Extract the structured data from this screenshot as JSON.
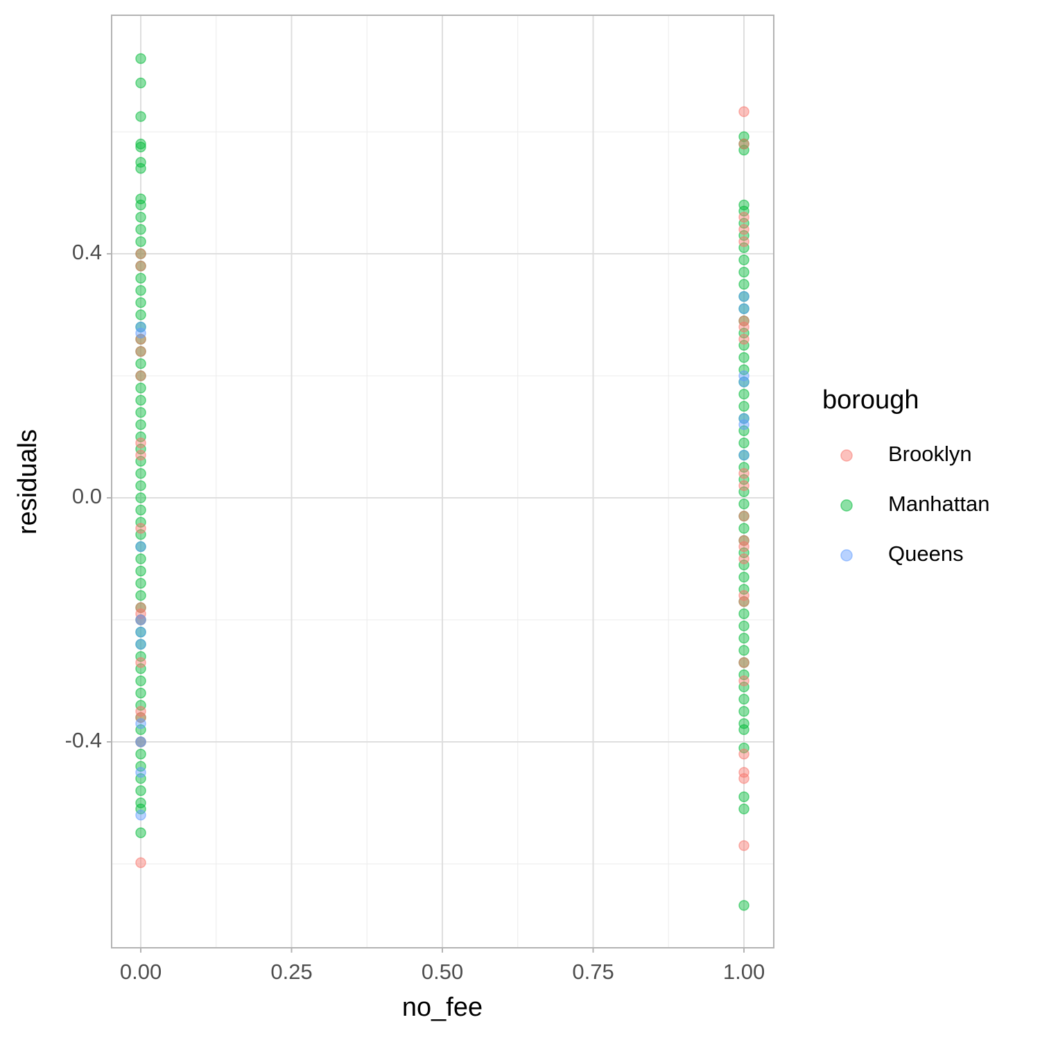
{
  "chart_data": {
    "type": "scatter",
    "xlabel": "no_fee",
    "ylabel": "residuals",
    "legend_title": "borough",
    "legend": "right",
    "grid": true,
    "xlim": [
      -0.0483,
      1.0494
    ],
    "ylim": [
      -0.7375,
      0.791
    ],
    "xticks": [
      {
        "value": 0,
        "label": "0.00"
      },
      {
        "value": 0.25,
        "label": "0.25"
      },
      {
        "value": 0.5,
        "label": "0.50"
      },
      {
        "value": 0.75,
        "label": "0.75"
      },
      {
        "value": 1,
        "label": "1.00"
      }
    ],
    "yticks": [
      -0.4,
      {
        "value": 0,
        "label": "0.0"
      },
      0.4
    ],
    "x_minor_grid": [
      0.125,
      0.375,
      0.625,
      0.875
    ],
    "y_minor_grid": [
      -0.6,
      -0.2,
      0.2,
      0.6
    ],
    "series": [
      {
        "name": "Manhattan",
        "color": "#00BA38",
        "x": [
          0,
          0,
          0,
          0,
          0,
          0,
          0,
          0,
          0,
          0,
          0,
          0,
          0,
          0,
          0,
          0,
          0,
          0,
          0,
          0,
          0,
          0,
          0,
          0,
          0,
          0,
          0,
          0,
          0,
          0,
          0,
          0,
          0,
          0,
          0,
          0,
          0,
          0,
          0,
          0,
          0,
          0,
          0,
          0,
          0,
          0,
          0,
          0,
          0,
          0,
          0,
          0,
          0,
          0,
          0,
          0,
          0,
          0,
          0,
          0,
          1,
          1,
          1,
          1,
          1,
          1,
          1,
          1,
          1,
          1,
          1,
          1,
          1,
          1,
          1,
          1,
          1,
          1,
          1,
          1,
          1,
          1,
          1,
          1,
          1,
          1,
          1,
          1,
          1,
          1,
          1,
          1,
          1,
          1,
          1,
          1,
          1,
          1,
          1,
          1,
          1,
          1,
          1,
          1,
          1,
          1,
          1,
          1,
          1,
          1,
          1,
          1
        ],
        "values": [
          0.72,
          0.68,
          0.625,
          0.58,
          0.575,
          0.55,
          0.54,
          0.49,
          0.48,
          0.46,
          0.44,
          0.42,
          0.4,
          0.38,
          0.36,
          0.34,
          0.32,
          0.3,
          0.28,
          0.26,
          0.24,
          0.22,
          0.2,
          0.18,
          0.16,
          0.14,
          0.12,
          0.1,
          0.08,
          0.06,
          0.04,
          0.02,
          0,
          -0.02,
          -0.04,
          -0.06,
          -0.08,
          -0.1,
          -0.12,
          -0.14,
          -0.16,
          -0.18,
          -0.2,
          -0.22,
          -0.24,
          -0.26,
          -0.28,
          -0.3,
          -0.32,
          -0.34,
          -0.36,
          -0.38,
          -0.4,
          -0.42,
          -0.44,
          -0.46,
          -0.48,
          -0.5,
          -0.51,
          -0.549,
          0.592,
          0.58,
          0.57,
          0.48,
          0.47,
          0.45,
          0.43,
          0.41,
          0.39,
          0.37,
          0.35,
          0.33,
          0.31,
          0.29,
          0.27,
          0.25,
          0.23,
          0.21,
          0.19,
          0.17,
          0.15,
          0.13,
          0.11,
          0.09,
          0.07,
          0.05,
          0.03,
          0.01,
          -0.01,
          -0.03,
          -0.05,
          -0.07,
          -0.09,
          -0.11,
          -0.13,
          -0.15,
          -0.17,
          -0.19,
          -0.21,
          -0.23,
          -0.25,
          -0.27,
          -0.29,
          -0.31,
          -0.33,
          -0.35,
          -0.37,
          -0.38,
          -0.41,
          -0.49,
          -0.51,
          -0.668
        ]
      },
      {
        "name": "Brooklyn",
        "color": "#F8766D",
        "x": [
          0,
          0,
          0,
          0,
          0,
          0,
          0,
          0,
          0,
          0,
          0,
          0,
          0,
          0,
          0,
          0,
          1,
          1,
          1,
          1,
          1,
          1,
          1,
          1,
          1,
          1,
          1,
          1,
          1,
          1,
          1,
          1,
          1,
          1,
          1,
          1,
          1,
          1
        ],
        "values": [
          0.4,
          0.38,
          0.26,
          0.24,
          0.2,
          0.09,
          0.07,
          -0.05,
          -0.18,
          -0.19,
          -0.2,
          -0.27,
          -0.35,
          -0.36,
          -0.4,
          -0.598,
          0.633,
          0.58,
          0.46,
          0.44,
          0.42,
          0.29,
          0.28,
          0.26,
          0.04,
          0.02,
          -0.03,
          -0.07,
          -0.08,
          -0.1,
          -0.16,
          -0.17,
          -0.27,
          -0.3,
          -0.42,
          -0.45,
          -0.46,
          -0.57
        ]
      },
      {
        "name": "Queens",
        "color": "#619CFF",
        "x": [
          0,
          0,
          0,
          0,
          0,
          0,
          0,
          0,
          0,
          0,
          1,
          1,
          1,
          1,
          1,
          1,
          1
        ],
        "values": [
          0.28,
          0.27,
          -0.08,
          -0.2,
          -0.22,
          -0.24,
          -0.37,
          -0.4,
          -0.45,
          -0.52,
          0.33,
          0.31,
          0.2,
          0.19,
          0.13,
          0.12,
          0.07
        ]
      }
    ]
  }
}
